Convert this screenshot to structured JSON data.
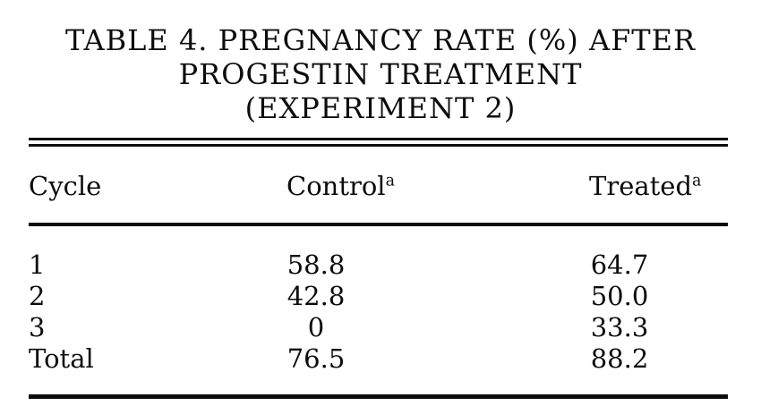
{
  "page": {
    "title_line1": "TABLE 4. PREGNANCY RATE (%) AFTER",
    "title_line2": "PROGESTIN TREATMENT",
    "title_line3": "(EXPERIMENT 2)"
  },
  "table": {
    "headers": [
      {
        "label": "Cycle",
        "sup": ""
      },
      {
        "label": "Control",
        "sup": "a"
      },
      {
        "label": "Treated",
        "sup": "a"
      }
    ],
    "rows": [
      {
        "cycle": "1",
        "control": "58.8",
        "treated": "64.7"
      },
      {
        "cycle": "2",
        "control": "42.8",
        "treated": "50.0"
      },
      {
        "cycle": "3",
        "control": "0",
        "treated": "33.3"
      },
      {
        "cycle": "Total",
        "control": "76.5",
        "treated": "88.2"
      }
    ]
  },
  "chart_data": {
    "type": "table",
    "title": "TABLE 4. PREGNANCY RATE (%) AFTER PROGESTIN TREATMENT (EXPERIMENT 2)",
    "columns": [
      "Cycle",
      "Control",
      "Treated"
    ],
    "categories": [
      "1",
      "2",
      "3",
      "Total"
    ],
    "series": [
      {
        "name": "Control",
        "values": [
          58.8,
          42.8,
          0,
          76.5
        ]
      },
      {
        "name": "Treated",
        "values": [
          64.7,
          50.0,
          33.3,
          88.2
        ]
      }
    ],
    "footnote_marker": "a",
    "units": "percent"
  }
}
